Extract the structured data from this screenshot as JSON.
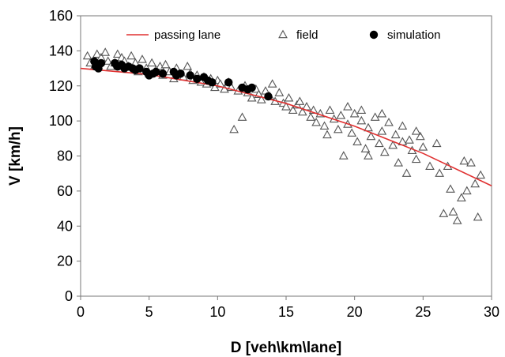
{
  "chart_data": {
    "type": "scatter",
    "xlabel": "D [veh\\km\\lane]",
    "ylabel": "V [km/h]",
    "xlim": [
      0,
      30
    ],
    "ylim": [
      0,
      160
    ],
    "xticks": [
      0,
      5,
      10,
      15,
      20,
      25,
      30
    ],
    "yticks": [
      0,
      20,
      40,
      60,
      80,
      100,
      120,
      140,
      160
    ],
    "grid": false,
    "legend_position": "top",
    "series": [
      {
        "name": "passing lane",
        "kind": "line",
        "color": "#e03030",
        "x": [
          0,
          5,
          10,
          15,
          20,
          25,
          30
        ],
        "y": [
          130,
          126.5,
          120,
          110,
          97,
          81.5,
          63
        ]
      },
      {
        "name": "field",
        "kind": "scatter",
        "marker": "triangle",
        "color": "#555555",
        "points": [
          [
            0.5,
            137
          ],
          [
            0.7,
            133
          ],
          [
            1.0,
            131
          ],
          [
            1.2,
            138
          ],
          [
            1.5,
            136
          ],
          [
            1.8,
            139
          ],
          [
            2.0,
            134
          ],
          [
            2.2,
            131
          ],
          [
            2.5,
            133
          ],
          [
            2.7,
            138
          ],
          [
            3.0,
            136
          ],
          [
            3.2,
            134
          ],
          [
            3.5,
            131
          ],
          [
            3.7,
            137
          ],
          [
            4.0,
            133
          ],
          [
            4.2,
            128
          ],
          [
            4.5,
            135
          ],
          [
            4.8,
            130
          ],
          [
            5.0,
            127
          ],
          [
            5.2,
            133
          ],
          [
            5.5,
            129
          ],
          [
            5.8,
            131
          ],
          [
            6.0,
            126
          ],
          [
            6.2,
            132
          ],
          [
            6.5,
            128
          ],
          [
            6.8,
            124
          ],
          [
            7.0,
            130
          ],
          [
            7.2,
            127
          ],
          [
            7.5,
            125
          ],
          [
            7.8,
            131
          ],
          [
            8.0,
            127
          ],
          [
            8.2,
            123
          ],
          [
            8.5,
            126
          ],
          [
            8.8,
            122
          ],
          [
            9.0,
            125
          ],
          [
            9.2,
            121
          ],
          [
            9.5,
            124
          ],
          [
            9.8,
            119
          ],
          [
            10.0,
            123
          ],
          [
            10.2,
            121
          ],
          [
            10.5,
            118
          ],
          [
            10.8,
            122
          ],
          [
            11.0,
            119
          ],
          [
            11.2,
            95
          ],
          [
            11.5,
            117
          ],
          [
            11.8,
            102
          ],
          [
            12.0,
            120
          ],
          [
            12.2,
            116
          ],
          [
            12.5,
            113
          ],
          [
            12.8,
            118
          ],
          [
            13.0,
            115
          ],
          [
            13.2,
            112
          ],
          [
            13.5,
            117
          ],
          [
            13.8,
            114
          ],
          [
            14.0,
            121
          ],
          [
            14.2,
            111
          ],
          [
            14.5,
            116
          ],
          [
            14.8,
            110
          ],
          [
            15.0,
            108
          ],
          [
            15.2,
            113
          ],
          [
            15.5,
            106
          ],
          [
            15.8,
            109
          ],
          [
            16.0,
            111
          ],
          [
            16.2,
            105
          ],
          [
            16.5,
            108
          ],
          [
            16.8,
            102
          ],
          [
            17.0,
            106
          ],
          [
            17.2,
            99
          ],
          [
            17.5,
            104
          ],
          [
            17.8,
            97
          ],
          [
            18.0,
            92
          ],
          [
            18.2,
            106
          ],
          [
            18.5,
            101
          ],
          [
            18.8,
            95
          ],
          [
            19.0,
            103
          ],
          [
            19.2,
            80
          ],
          [
            19.5,
            98
          ],
          [
            19.8,
            93
          ],
          [
            20.0,
            104
          ],
          [
            20.2,
            88
          ],
          [
            20.5,
            100
          ],
          [
            20.8,
            84
          ],
          [
            21.0,
            96
          ],
          [
            21.2,
            91
          ],
          [
            21.5,
            102
          ],
          [
            21.8,
            87
          ],
          [
            22.0,
            94
          ],
          [
            22.2,
            82
          ],
          [
            22.5,
            99
          ],
          [
            22.8,
            86
          ],
          [
            23.0,
            92
          ],
          [
            23.2,
            76
          ],
          [
            23.5,
            97
          ],
          [
            23.8,
            70
          ],
          [
            24.0,
            89
          ],
          [
            24.2,
            83
          ],
          [
            24.5,
            78
          ],
          [
            24.8,
            91
          ],
          [
            25.0,
            85
          ],
          [
            25.5,
            74
          ],
          [
            26.0,
            87
          ],
          [
            26.2,
            70
          ],
          [
            26.5,
            47
          ],
          [
            26.8,
            74
          ],
          [
            27.0,
            61
          ],
          [
            27.2,
            48
          ],
          [
            27.5,
            43
          ],
          [
            27.8,
            56
          ],
          [
            28.0,
            77
          ],
          [
            28.2,
            60
          ],
          [
            28.5,
            76
          ],
          [
            28.8,
            64
          ],
          [
            29.0,
            45
          ],
          [
            29.2,
            69
          ],
          [
            19.5,
            108
          ],
          [
            21.0,
            80
          ],
          [
            22.0,
            104
          ],
          [
            23.5,
            88
          ],
          [
            24.5,
            94
          ],
          [
            20.5,
            106
          ]
        ]
      },
      {
        "name": "simulation",
        "kind": "scatter",
        "marker": "circle",
        "color": "#000000",
        "points": [
          [
            1.0,
            134
          ],
          [
            1.1,
            131
          ],
          [
            1.3,
            130
          ],
          [
            1.5,
            133
          ],
          [
            2.5,
            133
          ],
          [
            2.7,
            131
          ],
          [
            3.0,
            132
          ],
          [
            3.2,
            130
          ],
          [
            3.5,
            131
          ],
          [
            4.0,
            129
          ],
          [
            4.3,
            130
          ],
          [
            4.8,
            128
          ],
          [
            5.0,
            126
          ],
          [
            5.3,
            127
          ],
          [
            6.8,
            128
          ],
          [
            7.0,
            126
          ],
          [
            7.3,
            127
          ],
          [
            8.5,
            124
          ],
          [
            9.0,
            125
          ],
          [
            9.3,
            123
          ],
          [
            9.6,
            122
          ],
          [
            10.8,
            122
          ],
          [
            11.8,
            119
          ],
          [
            12.2,
            118
          ],
          [
            12.5,
            119
          ],
          [
            13.7,
            114
          ],
          [
            6.0,
            127
          ],
          [
            8.0,
            126
          ],
          [
            5.5,
            128
          ],
          [
            3.8,
            130
          ]
        ]
      }
    ]
  }
}
